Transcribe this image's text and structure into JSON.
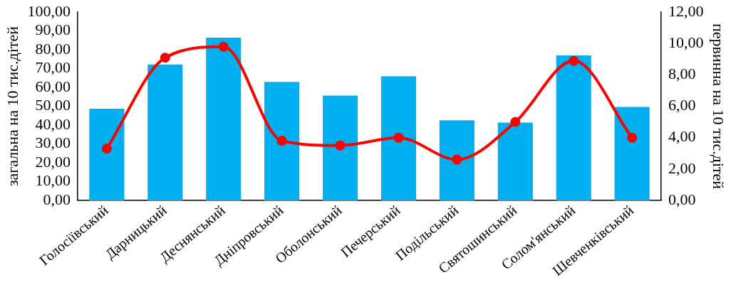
{
  "chart_data": {
    "type": "bar",
    "ylabel": "загальна на 10 тис.дітей",
    "y2label": "первинна на 10 тис.дітей",
    "categories": [
      "Голосіївський",
      "Дарницький",
      "Деснянський",
      "Дніпровський",
      "Оболонський",
      "Печерський",
      "Подільський",
      "Святошинський",
      "Солом'янський",
      "Шевченківський"
    ],
    "series": [
      {
        "color": "#00b0f0",
        "values": [
          48.7,
          72.2,
          86.5,
          63,
          55.7,
          66,
          42.6,
          41.3,
          77,
          49.6
        ]
      },
      {
        "type": "line",
        "axis": "y2",
        "color": "#ff0000",
        "marker": "circle",
        "values": [
          3.3,
          9.1,
          9.8,
          3.8,
          3.5,
          4,
          2.6,
          5,
          8.9,
          4
        ]
      }
    ],
    "ylim": [
      0,
      100
    ],
    "yticks": [
      {
        "value": 0,
        "label": "0,00"
      },
      {
        "value": 10,
        "label": "10,00"
      },
      {
        "value": 20,
        "label": "20,00"
      },
      {
        "value": 30,
        "label": "30,00"
      },
      {
        "value": 40,
        "label": "40,00"
      },
      {
        "value": 50,
        "label": "50,00"
      },
      {
        "value": 60,
        "label": "60,00"
      },
      {
        "value": 70,
        "label": "70,00"
      },
      {
        "value": 80,
        "label": "80,00"
      },
      {
        "value": 90,
        "label": "90,00"
      },
      {
        "value": 100,
        "label": "100,00"
      }
    ],
    "y2lim": [
      0,
      12
    ],
    "y2ticks": [
      {
        "value": 0,
        "label": "0,00"
      },
      {
        "value": 2,
        "label": "2,00"
      },
      {
        "value": 4,
        "label": "4,00"
      },
      {
        "value": 6,
        "label": "6,00"
      },
      {
        "value": 8,
        "label": "8,00"
      },
      {
        "value": 10,
        "label": "10,00"
      },
      {
        "value": 12,
        "label": "12,00"
      }
    ],
    "grid": false,
    "legend": false
  }
}
